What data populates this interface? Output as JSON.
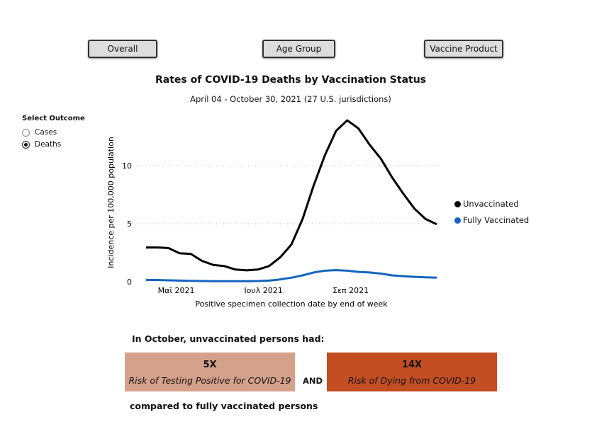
{
  "buttons": [
    "Overall",
    "Age Group",
    "Vaccine Product"
  ],
  "select_outcome": {
    "label": "Select Outcome",
    "options": [
      "Cases",
      "Deaths"
    ],
    "selected": "Deaths"
  },
  "colors": {
    "unvaccinated": "#000000",
    "vaccinated": "#1565c0",
    "box1": "#d4a18b",
    "box2": "#c24e22"
  },
  "chart_data": {
    "type": "line",
    "title": "Rates of COVID-19 Deaths by Vaccination Status",
    "subtitle": "April 04 - October 30, 2021 (27 U.S. jurisdictions)",
    "xlabel": "Positive specimen collection date by end of week",
    "ylabel": "Incidence per 100,000 population",
    "xticks": [
      "Μαϊ 2021",
      "Ιουλ 2021",
      "Σεπ 2021"
    ],
    "yticks": [
      "0",
      "5",
      "10"
    ],
    "ylim": [
      0,
      14.5
    ],
    "grid": true,
    "legend": "right",
    "series": [
      {
        "name": "Unvaccinated",
        "values": [
          2.95,
          2.95,
          2.9,
          2.45,
          2.4,
          1.8,
          1.45,
          1.35,
          1.05,
          0.98,
          1.05,
          1.35,
          2.1,
          3.2,
          5.4,
          8.3,
          10.9,
          13.0,
          13.9,
          13.2,
          11.8,
          10.6,
          9.0,
          7.6,
          6.3,
          5.4,
          4.95
        ]
      },
      {
        "name": "Fully Vaccinated",
        "values": [
          0.15,
          0.15,
          0.12,
          0.1,
          0.08,
          0.06,
          0.05,
          0.05,
          0.05,
          0.05,
          0.06,
          0.1,
          0.2,
          0.35,
          0.55,
          0.8,
          0.95,
          1.0,
          0.95,
          0.85,
          0.8,
          0.7,
          0.55,
          0.48,
          0.42,
          0.38,
          0.35
        ]
      }
    ]
  },
  "summary": {
    "heading": "In October, unvaccinated persons had:",
    "box1_value": "5X",
    "box1_label": "Risk of Testing Positive for COVID-19",
    "and": "AND",
    "box2_value": "14X",
    "box2_label": "Risk of Dying from COVID-19",
    "footer": "compared to fully vaccinated persons"
  }
}
